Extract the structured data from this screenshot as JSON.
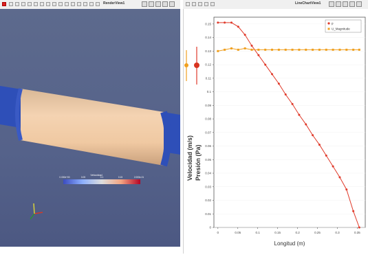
{
  "render_view": {
    "title": "RenderView1",
    "legend_title": "Velocidad",
    "legend_ticks": [
      "0.000e+00",
      "0.05",
      "0.1",
      "0.15",
      "2.000e-01"
    ],
    "colors": {
      "background": "#55628a",
      "pipe_end": "#2e4fb8",
      "pipe_body": "#f2cda8",
      "axis_x": "#d23a2a",
      "axis_y": "#d8d23a",
      "axis_z": "#2f8f3a"
    }
  },
  "chart_view": {
    "title": "LineChartView1",
    "side_labels": [
      "Velocidad (m/s)",
      "Presión (Pa)"
    ],
    "chart_data": {
      "type": "line",
      "xlabel": "Longitud (m)",
      "ylabel": "",
      "xlim": [
        -0.01,
        0.37
      ],
      "ylim": [
        0,
        0.155
      ],
      "x_ticks": [
        "0",
        "0.05",
        "0.1",
        "0.15",
        "0.2",
        "0.25",
        "0.3",
        "0.35"
      ],
      "y_ticks": [
        "0",
        "0.01",
        "0.02",
        "0.03",
        "0.04",
        "0.05",
        "0.06",
        "0.07",
        "0.08",
        "0.09",
        "0.1",
        "0.11",
        "0.12",
        "0.13",
        "0.14",
        "0.15"
      ],
      "legend_position": "top-right",
      "series": [
        {
          "name": "p",
          "color": "#e03a2a",
          "x": [
            0,
            0.017,
            0.034,
            0.051,
            0.068,
            0.085,
            0.102,
            0.119,
            0.136,
            0.153,
            0.17,
            0.187,
            0.204,
            0.221,
            0.238,
            0.255,
            0.272,
            0.289,
            0.306,
            0.323,
            0.34,
            0.355
          ],
          "values": [
            0.151,
            0.151,
            0.151,
            0.148,
            0.142,
            0.134,
            0.127,
            0.12,
            0.113,
            0.106,
            0.098,
            0.091,
            0.083,
            0.076,
            0.068,
            0.061,
            0.053,
            0.045,
            0.037,
            0.028,
            0.012,
            0.0
          ]
        },
        {
          "name": "U_Magnitude",
          "color": "#f0a020",
          "x": [
            0,
            0.017,
            0.034,
            0.051,
            0.068,
            0.085,
            0.102,
            0.119,
            0.136,
            0.153,
            0.17,
            0.187,
            0.204,
            0.221,
            0.238,
            0.255,
            0.272,
            0.289,
            0.306,
            0.323,
            0.34,
            0.355
          ],
          "values": [
            0.13,
            0.131,
            0.132,
            0.131,
            0.132,
            0.131,
            0.131,
            0.131,
            0.131,
            0.131,
            0.131,
            0.131,
            0.131,
            0.131,
            0.131,
            0.131,
            0.131,
            0.131,
            0.131,
            0.131,
            0.131,
            0.131
          ]
        }
      ]
    }
  }
}
